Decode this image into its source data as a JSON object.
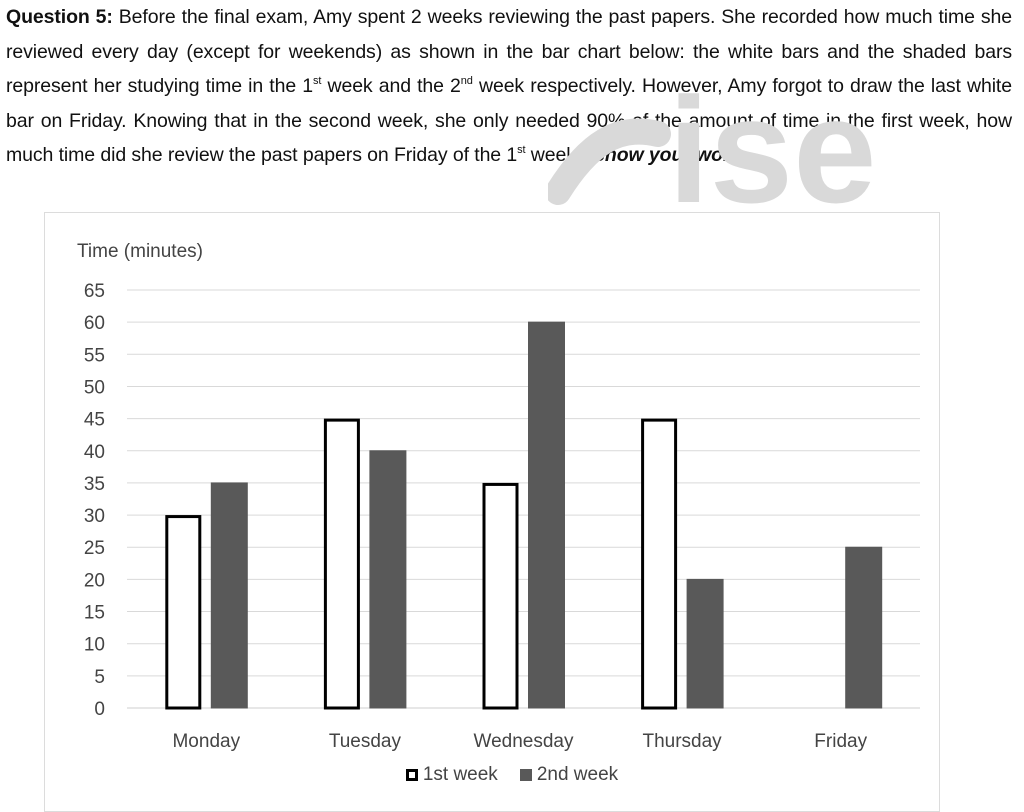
{
  "question": {
    "label": "Question 5:",
    "body_1": " Before the final exam, Amy spent 2 weeks reviewing the past papers. She recorded how much time she reviewed every day (except for weekends) as shown in the bar chart below: the white bars and the shaded bars represent her studying time in the 1",
    "sup_1": "st",
    "body_2": " week and the 2",
    "sup_2": "nd",
    "body_3": " week respectively. However, Amy forgot to draw the last white bar on Friday. Knowing that in the second week, she only needed 90% of the amount of time in the first week, how much time did she review the past papers on Friday of the 1",
    "sup_3": "st",
    "body_4": " week? ",
    "emphasis": "Show your work."
  },
  "watermark": {
    "text": "ise",
    "color": "#d9d9d9"
  },
  "chart_data": {
    "type": "bar",
    "title": "",
    "xlabel": "",
    "ylabel": "Time (minutes)",
    "categories": [
      "Monday",
      "Tuesday",
      "Wednesday",
      "Thursday",
      "Friday"
    ],
    "series": [
      {
        "name": "1st week",
        "values": [
          30,
          45,
          35,
          45,
          null
        ],
        "fill": "#ffffff",
        "stroke": "#000000"
      },
      {
        "name": "2nd week",
        "values": [
          35,
          40,
          60,
          20,
          25
        ],
        "fill": "#595959",
        "stroke": "#595959"
      }
    ],
    "ylim": [
      0,
      65
    ],
    "yticks": [
      0,
      5,
      10,
      15,
      20,
      25,
      30,
      35,
      40,
      45,
      50,
      55,
      60,
      65
    ],
    "grid": true,
    "legend_position": "bottom"
  }
}
